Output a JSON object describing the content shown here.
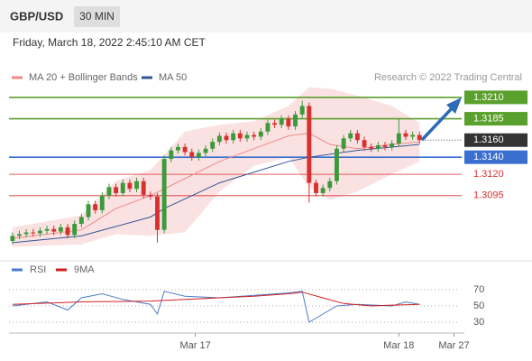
{
  "header": {
    "symbol": "GBP/USD",
    "timeframe": "30 MIN",
    "datetime": "Friday, March 18, 2022 2:45:10 AM CET"
  },
  "chart_data": [
    {
      "type": "candlestick",
      "source": "Research © 2022 Trading Central",
      "xlim": [
        -0.5,
        65.5
      ],
      "ylim": [
        1.3023,
        1.3231
      ],
      "up_color": "#3c9a3c",
      "down_color": "#d8302f",
      "open": [
        1.3042,
        1.3048,
        1.305,
        1.3052,
        1.3051,
        1.3054,
        1.3056,
        1.3053,
        1.3058,
        1.3049,
        1.3062,
        1.307,
        1.3085,
        1.3078,
        1.3095,
        1.3105,
        1.3098,
        1.311,
        1.3103,
        1.3112,
        1.3096,
        1.3094,
        1.3055,
        1.3138,
        1.3148,
        1.3152,
        1.3146,
        1.314,
        1.3145,
        1.315,
        1.3158,
        1.3165,
        1.316,
        1.3168,
        1.3162,
        1.3166,
        1.3164,
        1.317,
        1.318,
        1.3178,
        1.3185,
        1.3176,
        1.319,
        1.32,
        1.311,
        1.3098,
        1.3104,
        1.3112,
        1.315,
        1.3162,
        1.3168,
        1.316,
        1.3152,
        1.315,
        1.3154,
        1.3152,
        1.3156,
        1.3168,
        1.3164,
        1.3166
      ],
      "high": [
        1.3052,
        1.3054,
        1.3056,
        1.3056,
        1.3058,
        1.306,
        1.306,
        1.3062,
        1.3062,
        1.3066,
        1.3074,
        1.3089,
        1.3089,
        1.3099,
        1.3109,
        1.3109,
        1.3114,
        1.3114,
        1.3116,
        1.3116,
        1.31,
        1.3098,
        1.3142,
        1.3152,
        1.3156,
        1.3156,
        1.315,
        1.3149,
        1.3154,
        1.3162,
        1.3169,
        1.3169,
        1.3172,
        1.3172,
        1.317,
        1.317,
        1.3174,
        1.3184,
        1.3184,
        1.3189,
        1.3189,
        1.3194,
        1.3206,
        1.3204,
        1.3114,
        1.3108,
        1.3116,
        1.3154,
        1.3166,
        1.3172,
        1.3172,
        1.3164,
        1.3156,
        1.3158,
        1.3158,
        1.316,
        1.3185,
        1.3172,
        1.317,
        1.317
      ],
      "low": [
        1.3038,
        1.3044,
        1.3046,
        1.3047,
        1.3047,
        1.305,
        1.3049,
        1.3049,
        1.3045,
        1.3045,
        1.3058,
        1.3066,
        1.3074,
        1.3074,
        1.3091,
        1.3094,
        1.3094,
        1.3099,
        1.3099,
        1.3092,
        1.309,
        1.304,
        1.3051,
        1.3134,
        1.3144,
        1.3142,
        1.3136,
        1.3136,
        1.3141,
        1.3146,
        1.3154,
        1.3156,
        1.3156,
        1.3158,
        1.3158,
        1.316,
        1.316,
        1.3166,
        1.3174,
        1.3174,
        1.3172,
        1.3172,
        1.3186,
        1.3087,
        1.3094,
        1.3094,
        1.31,
        1.3108,
        1.3146,
        1.3158,
        1.3156,
        1.3148,
        1.3146,
        1.3146,
        1.3148,
        1.3148,
        1.3152,
        1.316,
        1.316,
        1.3156
      ],
      "close": [
        1.3048,
        1.305,
        1.3052,
        1.3051,
        1.3054,
        1.3056,
        1.3053,
        1.3058,
        1.3049,
        1.3062,
        1.307,
        1.3085,
        1.3078,
        1.3095,
        1.3105,
        1.3098,
        1.311,
        1.3103,
        1.3112,
        1.3096,
        1.3094,
        1.3055,
        1.3138,
        1.3148,
        1.3152,
        1.3146,
        1.314,
        1.3145,
        1.315,
        1.3158,
        1.3165,
        1.316,
        1.3168,
        1.3162,
        1.3166,
        1.3164,
        1.317,
        1.318,
        1.3178,
        1.3185,
        1.3176,
        1.319,
        1.32,
        1.311,
        1.3098,
        1.3104,
        1.3112,
        1.315,
        1.3162,
        1.3168,
        1.316,
        1.3152,
        1.315,
        1.3154,
        1.3152,
        1.3156,
        1.3168,
        1.3164,
        1.3166,
        1.316
      ],
      "series": [
        {
          "name": "MA 20 + Bollinger Bands",
          "color": "#ef8a8a",
          "x": [
            0,
            10,
            15,
            20,
            25,
            30,
            35,
            40,
            43,
            46,
            50,
            55,
            59
          ],
          "values": [
            1.3045,
            1.3055,
            1.308,
            1.3095,
            1.3115,
            1.3135,
            1.315,
            1.3165,
            1.3168,
            1.3155,
            1.315,
            1.3155,
            1.3158
          ],
          "upper": [
            1.3058,
            1.3072,
            1.3112,
            1.3125,
            1.317,
            1.3178,
            1.3182,
            1.32,
            1.3222,
            1.322,
            1.3212,
            1.32,
            1.318
          ],
          "lower": [
            1.3035,
            1.3038,
            1.305,
            1.3048,
            1.3052,
            1.31,
            1.313,
            1.314,
            1.3105,
            1.309,
            1.31,
            1.312,
            1.3135
          ]
        },
        {
          "name": "MA 50",
          "color": "#2f5597",
          "x": [
            0,
            10,
            20,
            22,
            30,
            40,
            43,
            50,
            59
          ],
          "values": [
            1.304,
            1.3048,
            1.307,
            1.308,
            1.311,
            1.3135,
            1.314,
            1.3148,
            1.3155
          ]
        }
      ],
      "levels": [
        {
          "value": 1.321,
          "label": "1.3210",
          "color": "#5aa02c",
          "boxed": true
        },
        {
          "value": 1.3185,
          "label": "1.3185",
          "color": "#5aa02c",
          "boxed": true
        },
        {
          "value": 1.314,
          "label": "1.3140",
          "color": "#3a6fd0",
          "boxed": true
        },
        {
          "value": 1.312,
          "label": "1.3120",
          "color": "#d8302f",
          "boxed": false
        },
        {
          "value": 1.3095,
          "label": "1.3095",
          "color": "#d8302f",
          "boxed": false
        }
      ],
      "last": {
        "value": 1.316,
        "label": "1.3160",
        "color": "#333333"
      }
    },
    {
      "type": "line",
      "xlim": [
        -0.5,
        65.5
      ],
      "ylim": [
        20,
        100
      ],
      "yticks": [
        30,
        50,
        70
      ],
      "xticks": [
        {
          "value": 26.5,
          "label": "Mar 17"
        },
        {
          "value": 56,
          "label": "Mar 18"
        },
        {
          "value": 64,
          "label": "Mar 27"
        }
      ],
      "series": [
        {
          "name": "RSI",
          "color": "#4a7bd0",
          "x": [
            0,
            5,
            8,
            10,
            13,
            16,
            20,
            21,
            22,
            25,
            30,
            35,
            40,
            42,
            43,
            44,
            47,
            50,
            55,
            57,
            59
          ],
          "values": [
            50,
            55,
            45,
            60,
            65,
            58,
            52,
            40,
            68,
            62,
            60,
            63,
            66,
            68,
            30,
            35,
            50,
            52,
            50,
            55,
            52
          ]
        },
        {
          "name": "9MA",
          "color": "#d62020",
          "x": [
            0,
            10,
            20,
            25,
            30,
            35,
            40,
            42,
            45,
            48,
            52,
            55,
            59
          ],
          "values": [
            52,
            55,
            56,
            58,
            60,
            62,
            65,
            67,
            60,
            53,
            50,
            51,
            52
          ]
        }
      ]
    }
  ]
}
